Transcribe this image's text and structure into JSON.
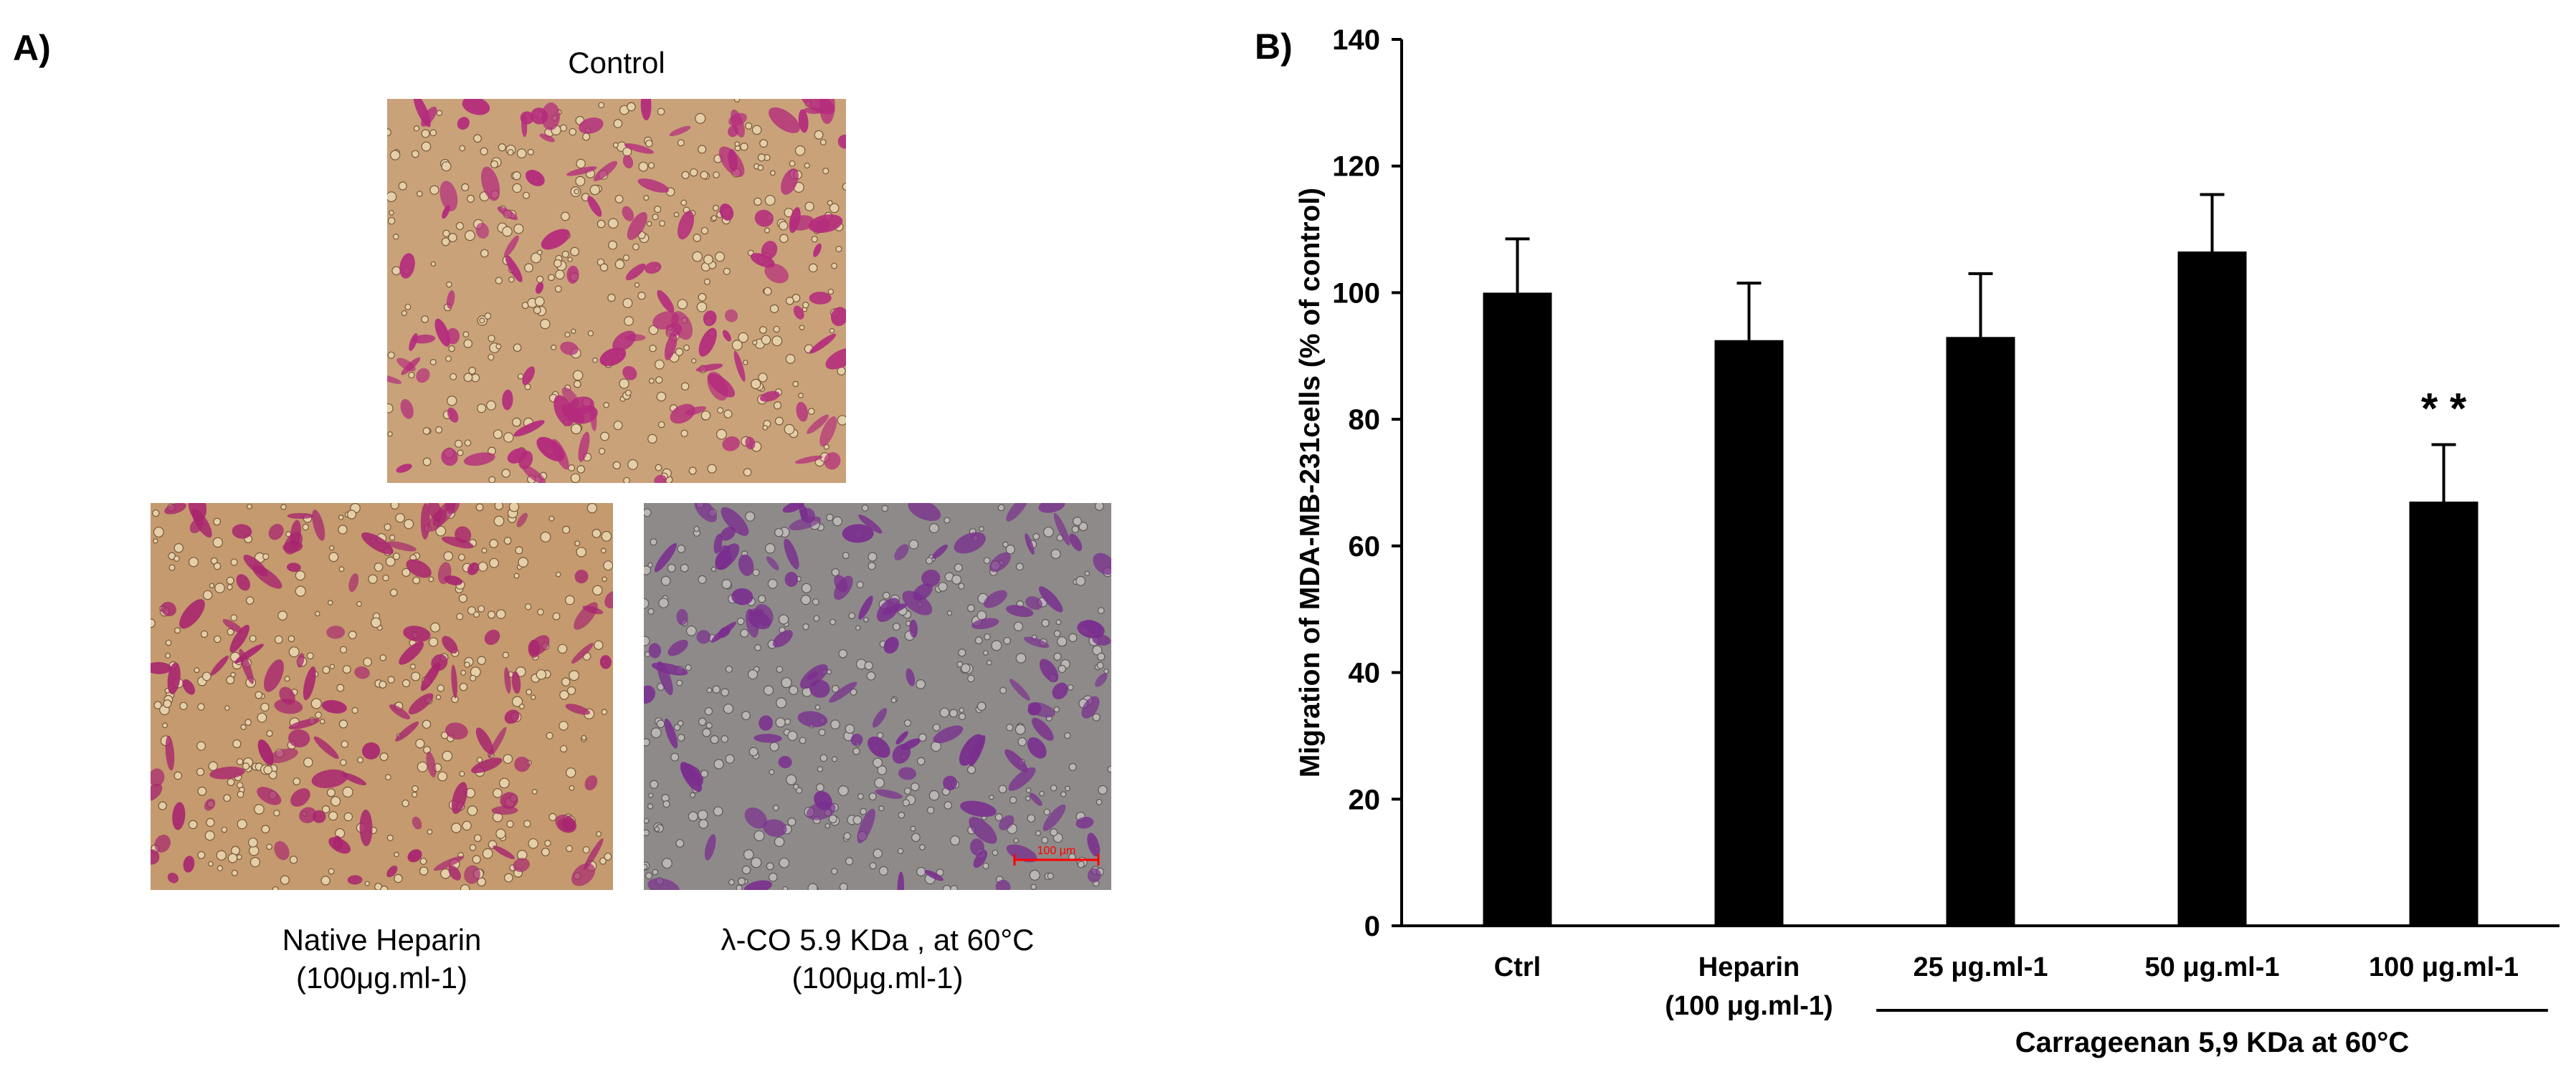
{
  "panel_a": {
    "label": "A)",
    "images": [
      {
        "name": "control",
        "caption_lines": [
          "Control"
        ],
        "tone": "#c9a27a",
        "stain": "#b42a7c"
      },
      {
        "name": "native-heparin",
        "caption_lines": [
          "Native Heparin",
          "(100μg.ml-1)"
        ],
        "tone": "#c49a6e",
        "stain": "#a8256f"
      },
      {
        "name": "lambda-co",
        "caption_lines": [
          "λ-CO 5.9 KDa , at 60°C",
          "(100μg.ml-1)"
        ],
        "tone": "#8e8a8a",
        "stain": "#7a2e8e",
        "scale_bar": "100 μm",
        "scale_color": "#ff0000"
      }
    ]
  },
  "panel_b": {
    "label": "B)",
    "group_label": "Carrageenan 5,9 KDa at 60°C",
    "significance": "* *"
  },
  "chart_data": {
    "type": "bar",
    "categories": [
      [
        "Ctrl"
      ],
      [
        "Heparin",
        "(100 μg.ml-1)"
      ],
      [
        "25 μg.ml-1"
      ],
      [
        "50 μg.ml-1"
      ],
      [
        "100 μg.ml-1"
      ]
    ],
    "values": [
      100,
      92.5,
      93,
      106.5,
      67
    ],
    "errors": [
      8.5,
      9,
      10,
      9,
      9
    ],
    "ylabel": "Migration of MDA-MB-231cells (% of control)",
    "xlabel": "",
    "ylim": [
      0,
      140
    ],
    "yticks": [
      0,
      20,
      40,
      60,
      80,
      100,
      120,
      140
    ],
    "bar_color": "#000000",
    "grid": false
  }
}
